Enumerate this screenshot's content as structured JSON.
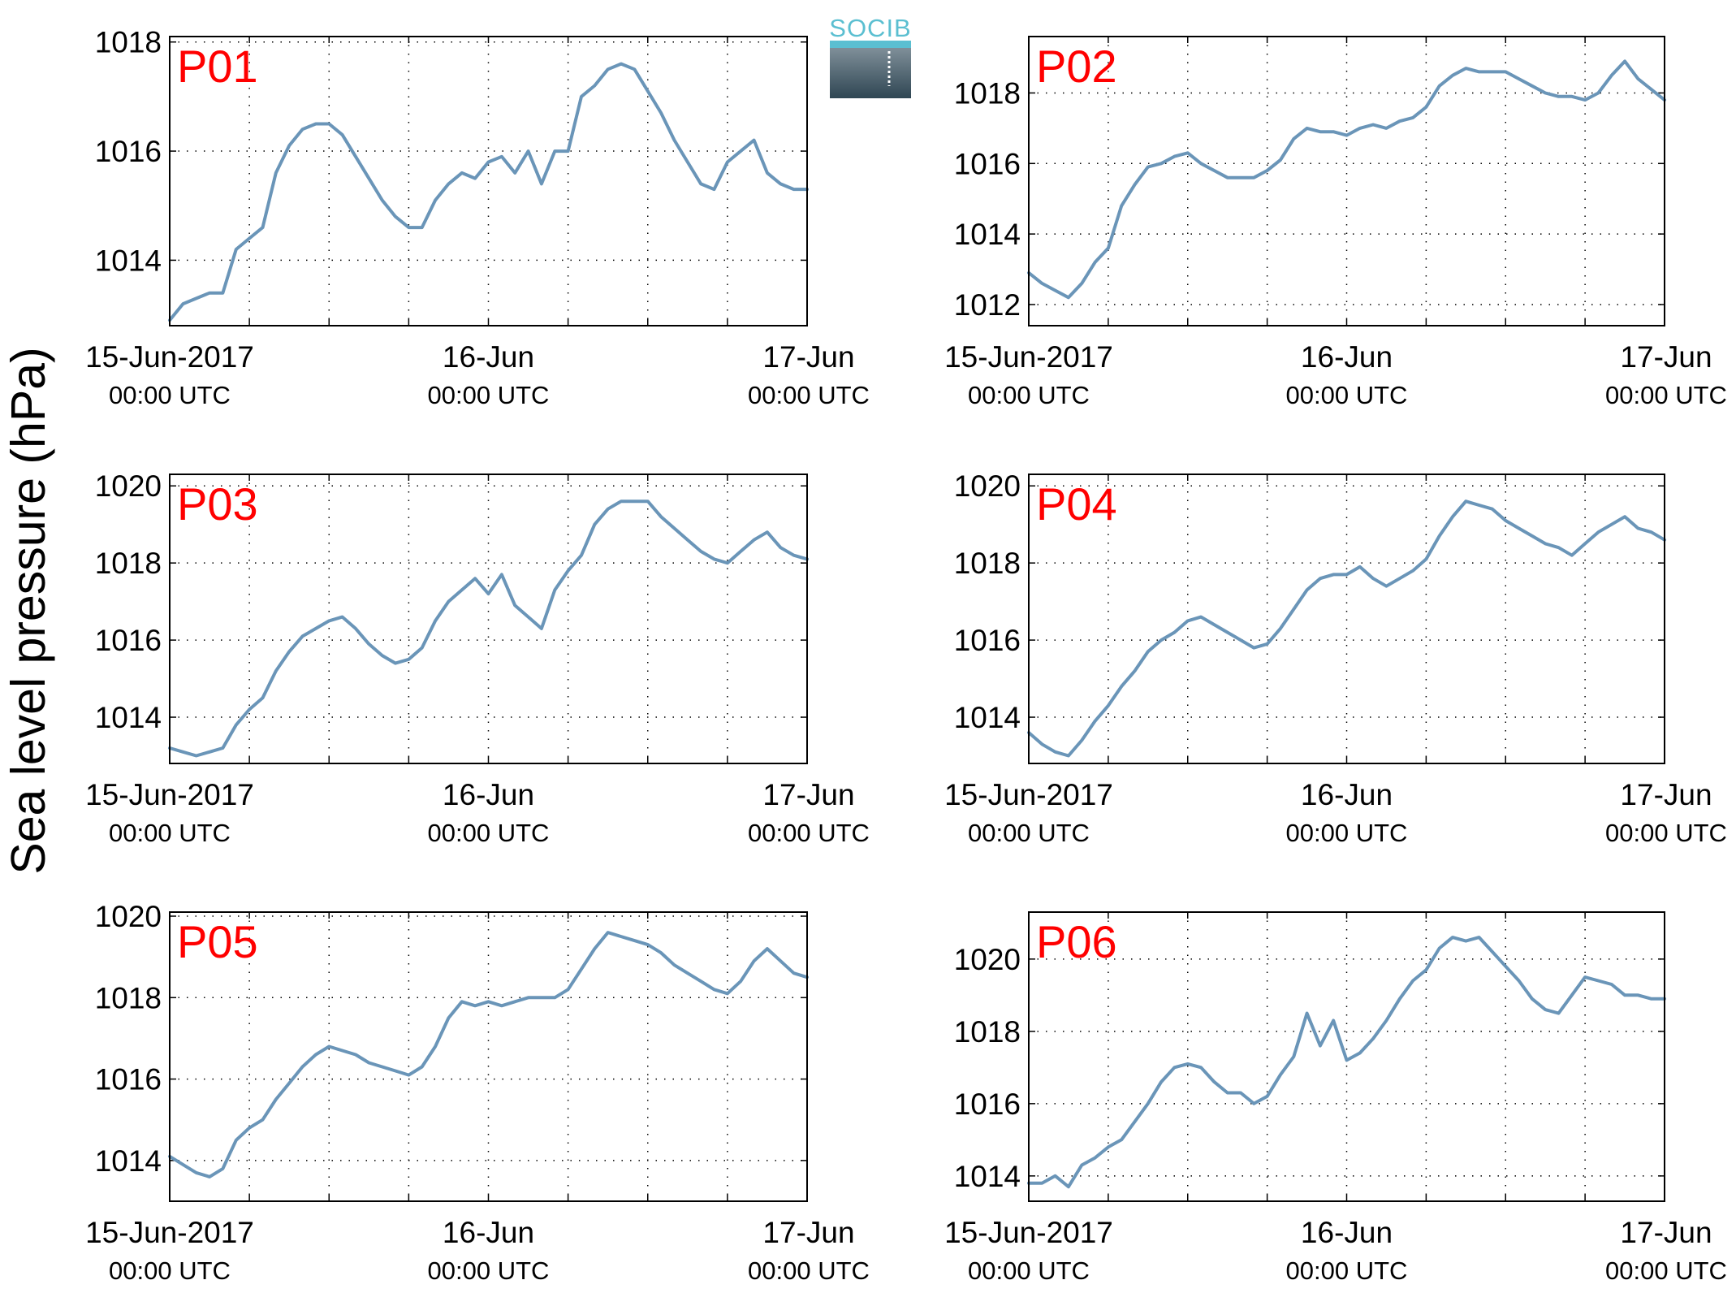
{
  "ylabel": "Sea level pressure (hPa)",
  "logo": {
    "text": "SOCIB"
  },
  "colors": {
    "line": "#6a95b8",
    "label": "#ff0000",
    "logo_text": "#5bbfd1",
    "logo_top": "#7f8f99",
    "logo_bottom": "#2f4653"
  },
  "x_ticks": [
    {
      "line1": "15-Jun-2017",
      "line2": "00:00 UTC",
      "hours": 0
    },
    {
      "line1": "16-Jun",
      "line2": "00:00 UTC",
      "hours": 24
    },
    {
      "line1": "17-Jun",
      "line2": "00:00 UTC",
      "hours": 48
    }
  ],
  "chart_data": [
    {
      "type": "line",
      "label": "P01",
      "xlim": [
        "2017-06-15 00:00",
        "2017-06-17 00:00"
      ],
      "ylim": [
        1012.8,
        1018.1
      ],
      "yticks": [
        1014,
        1016,
        1018
      ],
      "grid": true,
      "x": [
        "2017-06-15 00:00",
        "2017-06-15 01:00",
        "2017-06-15 02:00",
        "2017-06-15 03:00",
        "2017-06-15 04:00",
        "2017-06-15 05:00",
        "2017-06-15 06:00",
        "2017-06-15 07:00",
        "2017-06-15 08:00",
        "2017-06-15 09:00",
        "2017-06-15 10:00",
        "2017-06-15 11:00",
        "2017-06-15 12:00",
        "2017-06-15 13:00",
        "2017-06-15 14:00",
        "2017-06-15 15:00",
        "2017-06-15 16:00",
        "2017-06-15 17:00",
        "2017-06-15 18:00",
        "2017-06-15 19:00",
        "2017-06-15 20:00",
        "2017-06-15 21:00",
        "2017-06-15 22:00",
        "2017-06-15 23:00",
        "2017-06-16 00:00",
        "2017-06-16 01:00",
        "2017-06-16 02:00",
        "2017-06-16 03:00",
        "2017-06-16 04:00",
        "2017-06-16 05:00",
        "2017-06-16 06:00",
        "2017-06-16 07:00",
        "2017-06-16 08:00",
        "2017-06-16 09:00",
        "2017-06-16 10:00",
        "2017-06-16 11:00",
        "2017-06-16 12:00",
        "2017-06-16 13:00",
        "2017-06-16 14:00",
        "2017-06-16 15:00",
        "2017-06-16 16:00",
        "2017-06-16 17:00",
        "2017-06-16 18:00",
        "2017-06-16 19:00",
        "2017-06-16 20:00",
        "2017-06-16 21:00",
        "2017-06-16 22:00",
        "2017-06-16 23:00",
        "2017-06-17 00:00"
      ],
      "y": [
        1012.9,
        1013.2,
        1013.3,
        1013.4,
        1013.4,
        1014.2,
        1014.4,
        1014.6,
        1015.6,
        1016.1,
        1016.4,
        1016.5,
        1016.5,
        1016.3,
        1015.9,
        1015.5,
        1015.1,
        1014.8,
        1014.6,
        1014.6,
        1015.1,
        1015.4,
        1015.6,
        1015.5,
        1015.8,
        1015.9,
        1015.6,
        1016.0,
        1015.4,
        1016.0,
        1016.0,
        1017.0,
        1017.2,
        1017.5,
        1017.6,
        1017.5,
        1017.1,
        1016.7,
        1016.2,
        1015.8,
        1015.4,
        1015.3,
        1015.8,
        1016.0,
        1016.2,
        1015.6,
        1015.4,
        1015.3,
        1015.3
      ]
    },
    {
      "type": "line",
      "label": "P02",
      "xlim": [
        "2017-06-15 00:00",
        "2017-06-17 00:00"
      ],
      "ylim": [
        1011.4,
        1019.6
      ],
      "yticks": [
        1012,
        1014,
        1016,
        1018
      ],
      "grid": true,
      "x": [
        "2017-06-15 00:00",
        "2017-06-15 01:00",
        "2017-06-15 02:00",
        "2017-06-15 03:00",
        "2017-06-15 04:00",
        "2017-06-15 05:00",
        "2017-06-15 06:00",
        "2017-06-15 07:00",
        "2017-06-15 08:00",
        "2017-06-15 09:00",
        "2017-06-15 10:00",
        "2017-06-15 11:00",
        "2017-06-15 12:00",
        "2017-06-15 13:00",
        "2017-06-15 14:00",
        "2017-06-15 15:00",
        "2017-06-15 16:00",
        "2017-06-15 17:00",
        "2017-06-15 18:00",
        "2017-06-15 19:00",
        "2017-06-15 20:00",
        "2017-06-15 21:00",
        "2017-06-15 22:00",
        "2017-06-15 23:00",
        "2017-06-16 00:00",
        "2017-06-16 01:00",
        "2017-06-16 02:00",
        "2017-06-16 03:00",
        "2017-06-16 04:00",
        "2017-06-16 05:00",
        "2017-06-16 06:00",
        "2017-06-16 07:00",
        "2017-06-16 08:00",
        "2017-06-16 09:00",
        "2017-06-16 10:00",
        "2017-06-16 11:00",
        "2017-06-16 12:00",
        "2017-06-16 13:00",
        "2017-06-16 14:00",
        "2017-06-16 15:00",
        "2017-06-16 16:00",
        "2017-06-16 17:00",
        "2017-06-16 18:00",
        "2017-06-16 19:00",
        "2017-06-16 20:00",
        "2017-06-16 21:00",
        "2017-06-16 22:00",
        "2017-06-16 23:00",
        "2017-06-17 00:00"
      ],
      "y": [
        1012.9,
        1012.6,
        1012.4,
        1012.2,
        1012.6,
        1013.2,
        1013.6,
        1014.8,
        1015.4,
        1015.9,
        1016.0,
        1016.2,
        1016.3,
        1016.0,
        1015.8,
        1015.6,
        1015.6,
        1015.6,
        1015.8,
        1016.1,
        1016.7,
        1017.0,
        1016.9,
        1016.9,
        1016.8,
        1017.0,
        1017.1,
        1017.0,
        1017.2,
        1017.3,
        1017.6,
        1018.2,
        1018.5,
        1018.7,
        1018.6,
        1018.6,
        1018.6,
        1018.4,
        1018.2,
        1018.0,
        1017.9,
        1017.9,
        1017.8,
        1018.0,
        1018.5,
        1018.9,
        1018.4,
        1018.1,
        1017.8
      ]
    },
    {
      "type": "line",
      "label": "P03",
      "xlim": [
        "2017-06-15 00:00",
        "2017-06-17 00:00"
      ],
      "ylim": [
        1012.8,
        1020.3
      ],
      "yticks": [
        1014,
        1016,
        1018,
        1020
      ],
      "grid": true,
      "x": [
        "2017-06-15 00:00",
        "2017-06-15 01:00",
        "2017-06-15 02:00",
        "2017-06-15 03:00",
        "2017-06-15 04:00",
        "2017-06-15 05:00",
        "2017-06-15 06:00",
        "2017-06-15 07:00",
        "2017-06-15 08:00",
        "2017-06-15 09:00",
        "2017-06-15 10:00",
        "2017-06-15 11:00",
        "2017-06-15 12:00",
        "2017-06-15 13:00",
        "2017-06-15 14:00",
        "2017-06-15 15:00",
        "2017-06-15 16:00",
        "2017-06-15 17:00",
        "2017-06-15 18:00",
        "2017-06-15 19:00",
        "2017-06-15 20:00",
        "2017-06-15 21:00",
        "2017-06-15 22:00",
        "2017-06-15 23:00",
        "2017-06-16 00:00",
        "2017-06-16 01:00",
        "2017-06-16 02:00",
        "2017-06-16 03:00",
        "2017-06-16 04:00",
        "2017-06-16 05:00",
        "2017-06-16 06:00",
        "2017-06-16 07:00",
        "2017-06-16 08:00",
        "2017-06-16 09:00",
        "2017-06-16 10:00",
        "2017-06-16 11:00",
        "2017-06-16 12:00",
        "2017-06-16 13:00",
        "2017-06-16 14:00",
        "2017-06-16 15:00",
        "2017-06-16 16:00",
        "2017-06-16 17:00",
        "2017-06-16 18:00",
        "2017-06-16 19:00",
        "2017-06-16 20:00",
        "2017-06-16 21:00",
        "2017-06-16 22:00",
        "2017-06-16 23:00",
        "2017-06-17 00:00"
      ],
      "y": [
        1013.2,
        1013.1,
        1013.0,
        1013.1,
        1013.2,
        1013.8,
        1014.2,
        1014.5,
        1015.2,
        1015.7,
        1016.1,
        1016.3,
        1016.5,
        1016.6,
        1016.3,
        1015.9,
        1015.6,
        1015.4,
        1015.5,
        1015.8,
        1016.5,
        1017.0,
        1017.3,
        1017.6,
        1017.2,
        1017.7,
        1016.9,
        1016.6,
        1016.3,
        1017.3,
        1017.8,
        1018.2,
        1019.0,
        1019.4,
        1019.6,
        1019.6,
        1019.6,
        1019.2,
        1018.9,
        1018.6,
        1018.3,
        1018.1,
        1018.0,
        1018.3,
        1018.6,
        1018.8,
        1018.4,
        1018.2,
        1018.1
      ]
    },
    {
      "type": "line",
      "label": "P04",
      "xlim": [
        "2017-06-15 00:00",
        "2017-06-17 00:00"
      ],
      "ylim": [
        1012.8,
        1020.3
      ],
      "yticks": [
        1014,
        1016,
        1018,
        1020
      ],
      "grid": true,
      "x": [
        "2017-06-15 00:00",
        "2017-06-15 01:00",
        "2017-06-15 02:00",
        "2017-06-15 03:00",
        "2017-06-15 04:00",
        "2017-06-15 05:00",
        "2017-06-15 06:00",
        "2017-06-15 07:00",
        "2017-06-15 08:00",
        "2017-06-15 09:00",
        "2017-06-15 10:00",
        "2017-06-15 11:00",
        "2017-06-15 12:00",
        "2017-06-15 13:00",
        "2017-06-15 14:00",
        "2017-06-15 15:00",
        "2017-06-15 16:00",
        "2017-06-15 17:00",
        "2017-06-15 18:00",
        "2017-06-15 19:00",
        "2017-06-15 20:00",
        "2017-06-15 21:00",
        "2017-06-15 22:00",
        "2017-06-15 23:00",
        "2017-06-16 00:00",
        "2017-06-16 01:00",
        "2017-06-16 02:00",
        "2017-06-16 03:00",
        "2017-06-16 04:00",
        "2017-06-16 05:00",
        "2017-06-16 06:00",
        "2017-06-16 07:00",
        "2017-06-16 08:00",
        "2017-06-16 09:00",
        "2017-06-16 10:00",
        "2017-06-16 11:00",
        "2017-06-16 12:00",
        "2017-06-16 13:00",
        "2017-06-16 14:00",
        "2017-06-16 15:00",
        "2017-06-16 16:00",
        "2017-06-16 17:00",
        "2017-06-16 18:00",
        "2017-06-16 19:00",
        "2017-06-16 20:00",
        "2017-06-16 21:00",
        "2017-06-16 22:00",
        "2017-06-16 23:00",
        "2017-06-17 00:00"
      ],
      "y": [
        1013.6,
        1013.3,
        1013.1,
        1013.0,
        1013.4,
        1013.9,
        1014.3,
        1014.8,
        1015.2,
        1015.7,
        1016.0,
        1016.2,
        1016.5,
        1016.6,
        1016.4,
        1016.2,
        1016.0,
        1015.8,
        1015.9,
        1016.3,
        1016.8,
        1017.3,
        1017.6,
        1017.7,
        1017.7,
        1017.9,
        1017.6,
        1017.4,
        1017.6,
        1017.8,
        1018.1,
        1018.7,
        1019.2,
        1019.6,
        1019.5,
        1019.4,
        1019.1,
        1018.9,
        1018.7,
        1018.5,
        1018.4,
        1018.2,
        1018.5,
        1018.8,
        1019.0,
        1019.2,
        1018.9,
        1018.8,
        1018.6
      ]
    },
    {
      "type": "line",
      "label": "P05",
      "xlim": [
        "2017-06-15 00:00",
        "2017-06-17 00:00"
      ],
      "ylim": [
        1013.0,
        1020.1
      ],
      "yticks": [
        1014,
        1016,
        1018,
        1020
      ],
      "grid": true,
      "x": [
        "2017-06-15 00:00",
        "2017-06-15 01:00",
        "2017-06-15 02:00",
        "2017-06-15 03:00",
        "2017-06-15 04:00",
        "2017-06-15 05:00",
        "2017-06-15 06:00",
        "2017-06-15 07:00",
        "2017-06-15 08:00",
        "2017-06-15 09:00",
        "2017-06-15 10:00",
        "2017-06-15 11:00",
        "2017-06-15 12:00",
        "2017-06-15 13:00",
        "2017-06-15 14:00",
        "2017-06-15 15:00",
        "2017-06-15 16:00",
        "2017-06-15 17:00",
        "2017-06-15 18:00",
        "2017-06-15 19:00",
        "2017-06-15 20:00",
        "2017-06-15 21:00",
        "2017-06-15 22:00",
        "2017-06-15 23:00",
        "2017-06-16 00:00",
        "2017-06-16 01:00",
        "2017-06-16 02:00",
        "2017-06-16 03:00",
        "2017-06-16 04:00",
        "2017-06-16 05:00",
        "2017-06-16 06:00",
        "2017-06-16 07:00",
        "2017-06-16 08:00",
        "2017-06-16 09:00",
        "2017-06-16 10:00",
        "2017-06-16 11:00",
        "2017-06-16 12:00",
        "2017-06-16 13:00",
        "2017-06-16 14:00",
        "2017-06-16 15:00",
        "2017-06-16 16:00",
        "2017-06-16 17:00",
        "2017-06-16 18:00",
        "2017-06-16 19:00",
        "2017-06-16 20:00",
        "2017-06-16 21:00",
        "2017-06-16 22:00",
        "2017-06-16 23:00",
        "2017-06-17 00:00"
      ],
      "y": [
        1014.1,
        1013.9,
        1013.7,
        1013.6,
        1013.8,
        1014.5,
        1014.8,
        1015.0,
        1015.5,
        1015.9,
        1016.3,
        1016.6,
        1016.8,
        1016.7,
        1016.6,
        1016.4,
        1016.3,
        1016.2,
        1016.1,
        1016.3,
        1016.8,
        1017.5,
        1017.9,
        1017.8,
        1017.9,
        1017.8,
        1017.9,
        1018.0,
        1018.0,
        1018.0,
        1018.2,
        1018.7,
        1019.2,
        1019.6,
        1019.5,
        1019.4,
        1019.3,
        1019.1,
        1018.8,
        1018.6,
        1018.4,
        1018.2,
        1018.1,
        1018.4,
        1018.9,
        1019.2,
        1018.9,
        1018.6,
        1018.5
      ]
    },
    {
      "type": "line",
      "label": "P06",
      "xlim": [
        "2017-06-15 00:00",
        "2017-06-17 00:00"
      ],
      "ylim": [
        1013.3,
        1021.3
      ],
      "yticks": [
        1014,
        1016,
        1018,
        1020
      ],
      "grid": true,
      "x": [
        "2017-06-15 00:00",
        "2017-06-15 01:00",
        "2017-06-15 02:00",
        "2017-06-15 03:00",
        "2017-06-15 04:00",
        "2017-06-15 05:00",
        "2017-06-15 06:00",
        "2017-06-15 07:00",
        "2017-06-15 08:00",
        "2017-06-15 09:00",
        "2017-06-15 10:00",
        "2017-06-15 11:00",
        "2017-06-15 12:00",
        "2017-06-15 13:00",
        "2017-06-15 14:00",
        "2017-06-15 15:00",
        "2017-06-15 16:00",
        "2017-06-15 17:00",
        "2017-06-15 18:00",
        "2017-06-15 19:00",
        "2017-06-15 20:00",
        "2017-06-15 21:00",
        "2017-06-15 22:00",
        "2017-06-15 23:00",
        "2017-06-16 00:00",
        "2017-06-16 01:00",
        "2017-06-16 02:00",
        "2017-06-16 03:00",
        "2017-06-16 04:00",
        "2017-06-16 05:00",
        "2017-06-16 06:00",
        "2017-06-16 07:00",
        "2017-06-16 08:00",
        "2017-06-16 09:00",
        "2017-06-16 10:00",
        "2017-06-16 11:00",
        "2017-06-16 12:00",
        "2017-06-16 13:00",
        "2017-06-16 14:00",
        "2017-06-16 15:00",
        "2017-06-16 16:00",
        "2017-06-16 17:00",
        "2017-06-16 18:00",
        "2017-06-16 19:00",
        "2017-06-16 20:00",
        "2017-06-16 21:00",
        "2017-06-16 22:00",
        "2017-06-16 23:00",
        "2017-06-17 00:00"
      ],
      "y": [
        1013.8,
        1013.8,
        1014.0,
        1013.7,
        1014.3,
        1014.5,
        1014.8,
        1015.0,
        1015.5,
        1016.0,
        1016.6,
        1017.0,
        1017.1,
        1017.0,
        1016.6,
        1016.3,
        1016.3,
        1016.0,
        1016.2,
        1016.8,
        1017.3,
        1018.5,
        1017.6,
        1018.3,
        1017.2,
        1017.4,
        1017.8,
        1018.3,
        1018.9,
        1019.4,
        1019.7,
        1020.3,
        1020.6,
        1020.5,
        1020.6,
        1020.2,
        1019.8,
        1019.4,
        1018.9,
        1018.6,
        1018.5,
        1019.0,
        1019.5,
        1019.4,
        1019.3,
        1019.0,
        1019.0,
        1018.9,
        1018.9
      ]
    }
  ]
}
